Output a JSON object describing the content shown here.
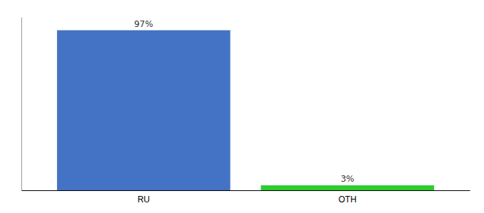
{
  "chart_data": {
    "type": "bar",
    "categories": [
      "RU",
      "OTH"
    ],
    "values": [
      97,
      3
    ],
    "value_labels": [
      "97%",
      "3%"
    ],
    "colors": [
      "#4472c4",
      "#2ecc2e"
    ],
    "ylim": [
      0,
      105
    ],
    "data_labels": true,
    "tick_labels": "x",
    "grid": false
  }
}
